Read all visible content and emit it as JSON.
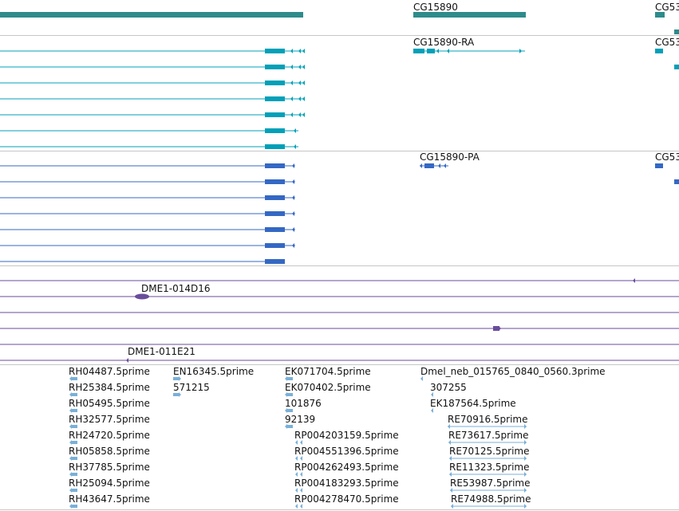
{
  "colors": {
    "gene": "#2e8b8b",
    "transcript_ra": "#00a0b8",
    "transcript_pa": "#3468c4",
    "clone": "#6a4c9c",
    "est": "#7ab0d8",
    "separator": "#c6c6c6"
  },
  "tracks": {
    "gene": {
      "labels": [
        "CG15890",
        "CG53"
      ]
    },
    "transcripts_ra": {
      "labels": [
        "CG15890-RA",
        "CG53"
      ]
    },
    "proteins_pa": {
      "labels": [
        "CG15890-PA",
        "CG53"
      ]
    },
    "clones": {
      "labels": [
        "DME1-014D16",
        "DME1-011E21"
      ]
    },
    "ests": {
      "column_1": [
        "RH04487.5prime",
        "RH25384.5prime",
        "RH05495.5prime",
        "RH32577.5prime",
        "RH24720.5prime",
        "RH05858.5prime",
        "RH37785.5prime",
        "RH25094.5prime",
        "RH43647.5prime"
      ],
      "column_2": [
        "EN16345.5prime",
        "571215"
      ],
      "column_3": [
        "EK071704.5prime",
        "EK070402.5prime",
        "101876",
        "92139",
        "RP004203159.5prime",
        "RP004551396.5prime",
        "RP004262493.5prime",
        "RP004183293.5prime",
        "RP004278470.5prime"
      ],
      "column_4": [
        "Dmel_neb_015765_0840_0560.3prime",
        "307255",
        "EK187564.5prime",
        "RE70916.5prime",
        "RE73617.5prime",
        "RE70125.5prime",
        "RE11323.5prime",
        "RE53987.5prime",
        "RE74988.5prime"
      ]
    }
  }
}
